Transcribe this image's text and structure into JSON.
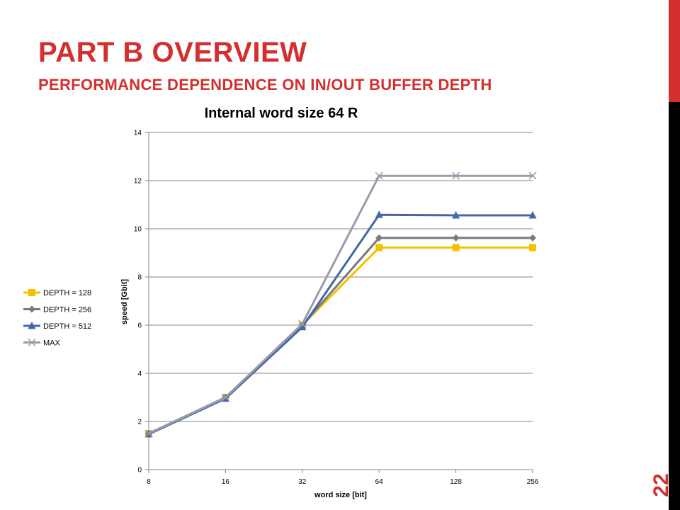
{
  "slide": {
    "title": "PART B OVERVIEW",
    "subtitle": "PERFORMANCE DEPENDENCE ON IN/OUT BUFFER DEPTH",
    "page_number": "22",
    "accent_color": "#d32f2f"
  },
  "chart_data": {
    "type": "line",
    "title": "Internal word size 64 R",
    "xlabel": "word size [bit]",
    "ylabel": "speed [Gbit]",
    "categories": [
      "8",
      "16",
      "32",
      "64",
      "128",
      "256"
    ],
    "ylim": [
      0,
      14
    ],
    "yticks": [
      "0",
      "2",
      "4",
      "6",
      "8",
      "10",
      "12",
      "14"
    ],
    "grid": true,
    "legend_position": "left",
    "series": [
      {
        "name": "DEPTH = 128",
        "values": [
          1.5,
          3.0,
          6.0,
          9.22,
          9.22,
          9.22
        ],
        "color": "#f2c200",
        "marker": "square"
      },
      {
        "name": "DEPTH = 256",
        "values": [
          1.5,
          3.0,
          6.0,
          9.62,
          9.62,
          9.62
        ],
        "color": "#7a7a7a",
        "marker": "diamond"
      },
      {
        "name": "DEPTH = 512",
        "values": [
          1.47,
          2.95,
          5.92,
          10.58,
          10.56,
          10.56
        ],
        "color": "#4169a8",
        "marker": "triangle"
      },
      {
        "name": "MAX",
        "values": [
          1.5,
          3.0,
          6.05,
          12.2,
          12.2,
          12.2
        ],
        "color": "#9a9aac",
        "marker": "x"
      }
    ]
  }
}
